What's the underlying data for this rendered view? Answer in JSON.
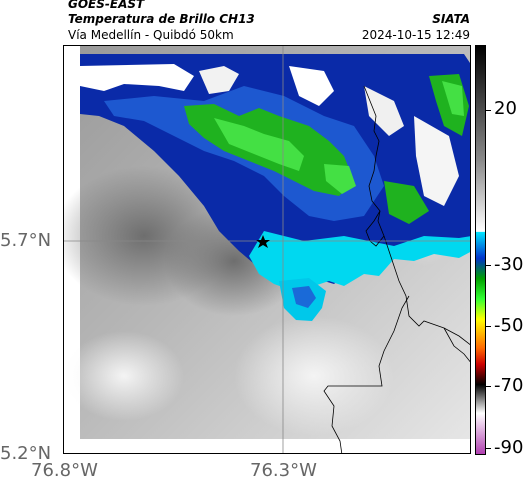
{
  "header": {
    "satellite": "GOES-EAST",
    "product": "Temperatura de Brillo CH13",
    "route": "Vía Medellín - Quibdó 50km",
    "organization": "SIATA",
    "timestamp": "2024-10-15 12:49"
  },
  "map": {
    "lat_labels": [
      "5.7°N",
      "5.2°N"
    ],
    "lon_labels": [
      "76.8°W",
      "76.3°W"
    ],
    "marker_icon": "star-icon",
    "gridline_color": "#888888"
  },
  "colorbar": {
    "tick_labels": [
      "20",
      "-30",
      "-50",
      "-70",
      "-90"
    ],
    "colors": [
      "#000000",
      "#8a8a8a",
      "#ffffff",
      "#00e5ff",
      "#0033cc",
      "#00a000",
      "#33ff33",
      "#ffff00",
      "#ff6a00",
      "#cc0000",
      "#000000",
      "#ffffff",
      "#b040b0"
    ]
  }
}
